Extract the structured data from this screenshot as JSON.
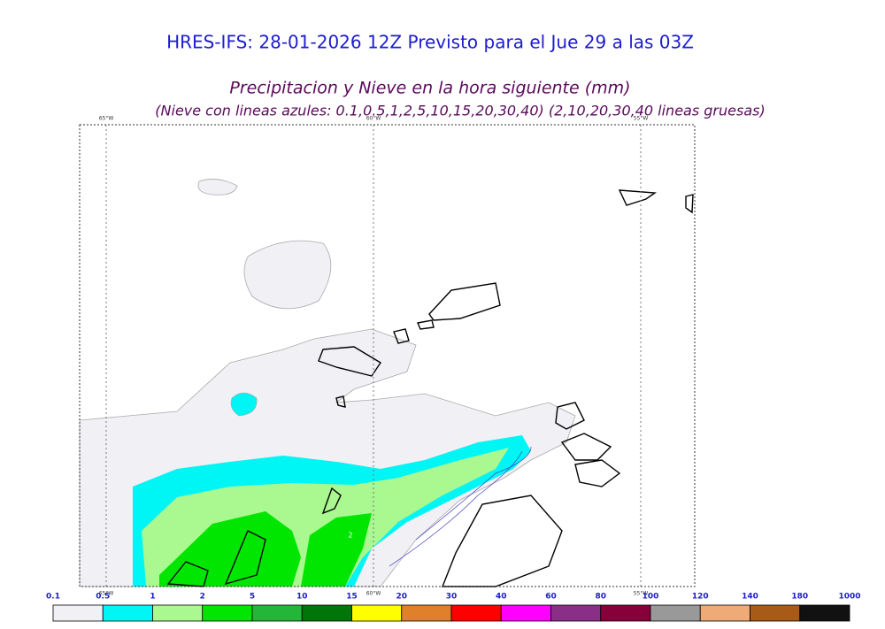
{
  "header": {
    "title": "HRES-IFS: 28-01-2026 12Z Previsto para el Jue 29 a las 03Z",
    "subtitle": "Precipitacion y Nieve en la hora siguiente (mm)",
    "note": "(Nieve con lineas azules: 0.1,0.5,1,2,5,10,15,20,30,40)  (2,10,20,30,40 lineas gruesas)"
  },
  "map": {
    "lon_labels": [
      "65°W",
      "60°W",
      "55°W"
    ],
    "contour_label": "2"
  },
  "colorbar": {
    "labels": [
      "0.1",
      "0.5",
      "1",
      "2",
      "5",
      "10",
      "15",
      "20",
      "30",
      "40",
      "60",
      "80",
      "100",
      "120",
      "140",
      "180",
      "1000"
    ],
    "colors": [
      "#f0f0f5",
      "#00f5f5",
      "#aaf890",
      "#00e600",
      "#22b63a",
      "#00760a",
      "#ffff00",
      "#e0802a",
      "#ff0000",
      "#ff00ff",
      "#8a2f88",
      "#88003a",
      "#999999",
      "#eeaa77",
      "#a85a18",
      "#111111"
    ]
  }
}
